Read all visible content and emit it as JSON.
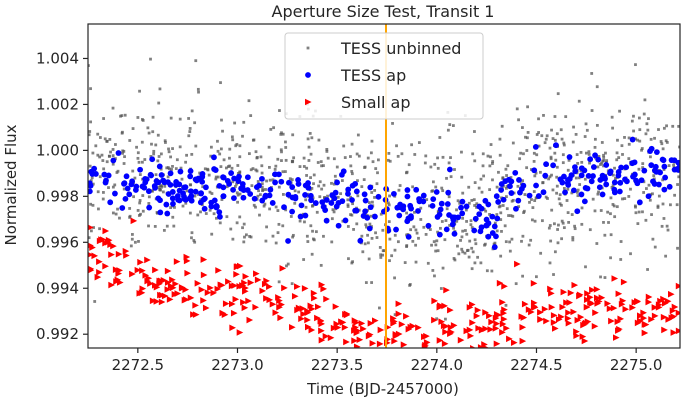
{
  "chart_data": {
    "type": "scatter",
    "title": "Aperture Size Test, Transit 1",
    "xlabel": "Time (BJD-2457000)",
    "ylabel": "Normalized Flux",
    "xlim": [
      2272.25,
      2275.22
    ],
    "ylim": [
      0.9914,
      1.0055
    ],
    "x_ticks": [
      2272.5,
      2273.0,
      2273.5,
      2274.0,
      2274.5,
      2275.0
    ],
    "x_tick_labels": [
      "2272.5",
      "2273.0",
      "2273.5",
      "2274.0",
      "2274.5",
      "2275.0"
    ],
    "y_ticks": [
      0.992,
      0.994,
      0.996,
      0.998,
      1.0,
      1.002,
      1.004
    ],
    "y_tick_labels": [
      "0.992",
      "0.994",
      "0.996",
      "0.998",
      "1.000",
      "1.002",
      "1.004"
    ],
    "grid": false,
    "legend_position": "top-center",
    "vertical_line": {
      "x": 2273.745,
      "color": "#ffa500"
    },
    "series": [
      {
        "name": "TESS unbinned",
        "marker": "square",
        "color": "#555555",
        "trend": [
          [
            2272.25,
            0.9992
          ],
          [
            2273.0,
            0.9985
          ],
          [
            2273.6,
            0.9978
          ],
          [
            2273.74,
            0.997
          ],
          [
            2274.3,
            0.9978
          ],
          [
            2274.5,
            0.9985
          ],
          [
            2275.22,
            0.9992
          ]
        ],
        "scatter": 0.00165,
        "count": 1100
      },
      {
        "name": "TESS ap",
        "marker": "circle",
        "color": "#0000ff",
        "trend": [
          [
            2272.25,
            0.9988
          ],
          [
            2272.7,
            0.9983
          ],
          [
            2273.2,
            0.9982
          ],
          [
            2273.7,
            0.9975
          ],
          [
            2274.0,
            0.9973
          ],
          [
            2274.3,
            0.997
          ],
          [
            2274.35,
            0.9985
          ],
          [
            2274.7,
            0.999
          ],
          [
            2275.22,
            0.9992
          ]
        ],
        "scatter": 0.00055,
        "count": 380
      },
      {
        "name": "Small ap",
        "marker": "triangle-right",
        "color": "#ff0000",
        "trend": [
          [
            2272.25,
            0.9957
          ],
          [
            2272.6,
            0.9942
          ],
          [
            2273.0,
            0.9937
          ],
          [
            2273.4,
            0.993
          ],
          [
            2273.74,
            0.9921
          ],
          [
            2274.3,
            0.9922
          ],
          [
            2274.35,
            0.9932
          ],
          [
            2274.7,
            0.9927
          ],
          [
            2275.22,
            0.9928
          ]
        ],
        "scatter": 0.00065,
        "count": 400
      }
    ]
  }
}
